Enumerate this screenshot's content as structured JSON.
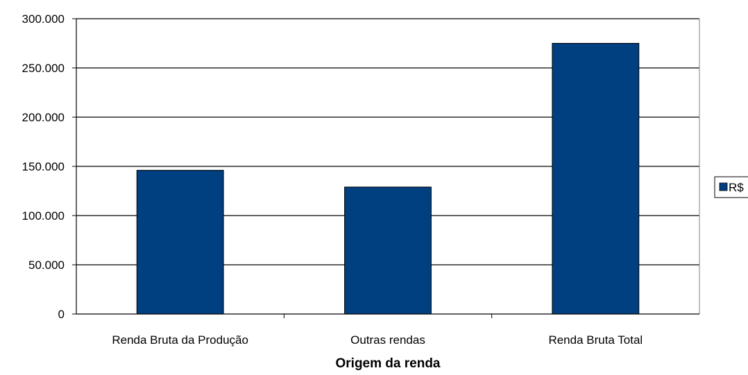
{
  "chart_data": {
    "type": "bar",
    "categories": [
      "Renda Bruta da Produção",
      "Outras rendas",
      "Renda Bruta Total"
    ],
    "series": [
      {
        "name": "R$",
        "values": [
          146000,
          129000,
          275000
        ],
        "color": "#003f80"
      }
    ],
    "xlabel": "Origem da renda",
    "ylabel": "",
    "ylim": [
      0,
      300000
    ],
    "yticks": [
      0,
      50000,
      100000,
      150000,
      200000,
      250000,
      300000
    ],
    "ytick_labels": [
      "0",
      "50.000",
      "100.000",
      "150.000",
      "200.000",
      "250.000",
      "300.000"
    ],
    "grid": true,
    "legend_position": "right"
  }
}
